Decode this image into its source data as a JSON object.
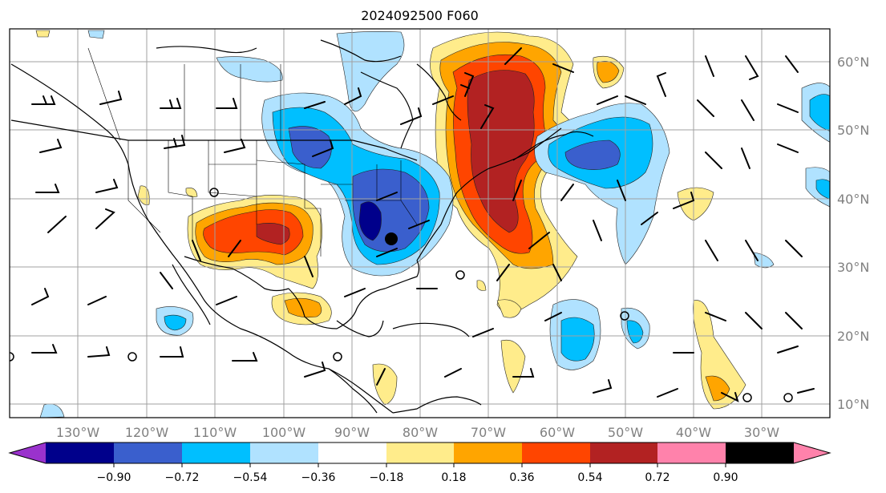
{
  "title": "2024092500 F060",
  "longitude_labels": [
    "130°W",
    "120°W",
    "110°W",
    "100°W",
    "90°W",
    "80°W",
    "70°W",
    "60°W",
    "50°W",
    "40°W",
    "30°W"
  ],
  "latitude_labels": [
    "60°N",
    "50°N",
    "40°N",
    "30°N",
    "20°N",
    "10°N"
  ],
  "colorbar": {
    "tick_labels": [
      "−0.90",
      "−0.72",
      "−0.54",
      "−0.36",
      "−0.18",
      "0.18",
      "0.36",
      "0.54",
      "0.72",
      "0.90"
    ],
    "colors": [
      "#9a32cd",
      "#00008b",
      "#3a5fcd",
      "#00bfff",
      "#b0e2ff",
      "#ffffff",
      "#ffec8b",
      "#ffa500",
      "#ff4500",
      "#b22222",
      "#ff82ab"
    ]
  },
  "map_legend_colors": {
    "land_outline": "#000000",
    "grid": "#a0a0a0",
    "barb": "#000000"
  }
}
